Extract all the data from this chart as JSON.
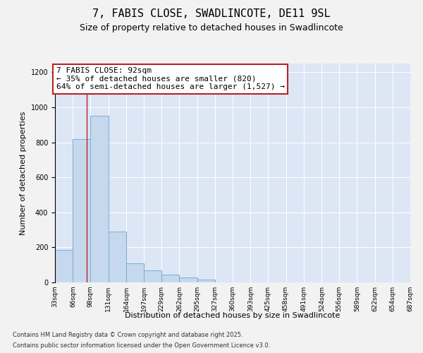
{
  "title1": "7, FABIS CLOSE, SWADLINCOTE, DE11 9SL",
  "title2": "Size of property relative to detached houses in Swadlincote",
  "xlabel": "Distribution of detached houses by size in Swadlincote",
  "ylabel": "Number of detached properties",
  "footnote1": "Contains HM Land Registry data © Crown copyright and database right 2025.",
  "footnote2": "Contains public sector information licensed under the Open Government Licence v3.0.",
  "annotation_line1": "7 FABIS CLOSE: 92sqm",
  "annotation_line2": "← 35% of detached houses are smaller (820)",
  "annotation_line3": "64% of semi-detached houses are larger (1,527) →",
  "red_line_x": 92,
  "bar_values": [
    185,
    820,
    950,
    290,
    110,
    70,
    45,
    30,
    15,
    0,
    0,
    0,
    0,
    0,
    0,
    0,
    0,
    0,
    0,
    0
  ],
  "bin_edges": [
    33,
    66,
    98,
    131,
    164,
    197,
    229,
    262,
    295,
    327,
    360,
    393,
    425,
    458,
    491,
    524,
    556,
    589,
    622,
    654,
    687
  ],
  "bin_labels": [
    "33sqm",
    "66sqm",
    "98sqm",
    "131sqm",
    "164sqm",
    "197sqm",
    "229sqm",
    "262sqm",
    "295sqm",
    "327sqm",
    "360sqm",
    "393sqm",
    "425sqm",
    "458sqm",
    "491sqm",
    "524sqm",
    "556sqm",
    "589sqm",
    "622sqm",
    "654sqm",
    "687sqm"
  ],
  "bar_color": "#c5d8ed",
  "bar_edgecolor": "#7badd4",
  "bg_color": "#dce6f5",
  "fig_bg_color": "#f2f2f2",
  "red_line_color": "#bb2222",
  "ann_box_edge_color": "#bb2222",
  "ylim": [
    0,
    1250
  ],
  "yticks": [
    0,
    200,
    400,
    600,
    800,
    1000,
    1200
  ],
  "ylabel_fontsize": 8,
  "xlabel_fontsize": 8,
  "tick_fontsize": 7,
  "title1_fontsize": 11,
  "title2_fontsize": 9,
  "ann_fontsize": 8,
  "footnote_fontsize": 6
}
